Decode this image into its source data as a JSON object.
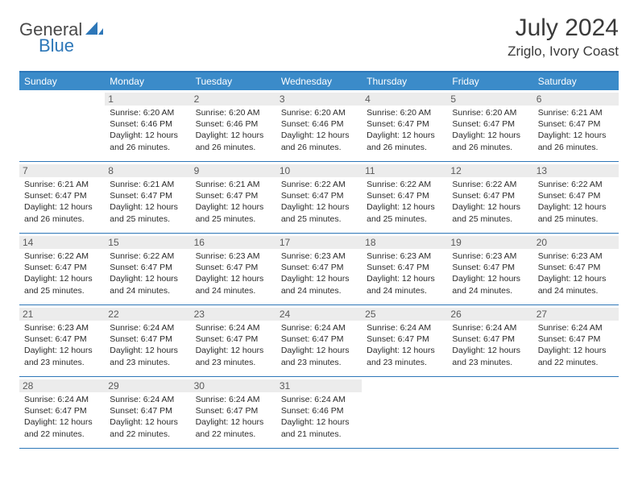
{
  "logo": {
    "word1": "General",
    "word2": "Blue"
  },
  "title": "July 2024",
  "location": "Zriglo, Ivory Coast",
  "colors": {
    "header_bg": "#3b8bc9",
    "header_text": "#ffffff",
    "border": "#2d77b8",
    "daynum_bg": "#ececec",
    "daynum_text": "#5a5a5a",
    "body_text": "#2b2b2b",
    "title_text": "#3a3a3a"
  },
  "day_names": [
    "Sunday",
    "Monday",
    "Tuesday",
    "Wednesday",
    "Thursday",
    "Friday",
    "Saturday"
  ],
  "weeks": [
    [
      {
        "n": "",
        "sr": "",
        "ss": "",
        "dl": ""
      },
      {
        "n": "1",
        "sr": "Sunrise: 6:20 AM",
        "ss": "Sunset: 6:46 PM",
        "dl": "Daylight: 12 hours and 26 minutes."
      },
      {
        "n": "2",
        "sr": "Sunrise: 6:20 AM",
        "ss": "Sunset: 6:46 PM",
        "dl": "Daylight: 12 hours and 26 minutes."
      },
      {
        "n": "3",
        "sr": "Sunrise: 6:20 AM",
        "ss": "Sunset: 6:46 PM",
        "dl": "Daylight: 12 hours and 26 minutes."
      },
      {
        "n": "4",
        "sr": "Sunrise: 6:20 AM",
        "ss": "Sunset: 6:47 PM",
        "dl": "Daylight: 12 hours and 26 minutes."
      },
      {
        "n": "5",
        "sr": "Sunrise: 6:20 AM",
        "ss": "Sunset: 6:47 PM",
        "dl": "Daylight: 12 hours and 26 minutes."
      },
      {
        "n": "6",
        "sr": "Sunrise: 6:21 AM",
        "ss": "Sunset: 6:47 PM",
        "dl": "Daylight: 12 hours and 26 minutes."
      }
    ],
    [
      {
        "n": "7",
        "sr": "Sunrise: 6:21 AM",
        "ss": "Sunset: 6:47 PM",
        "dl": "Daylight: 12 hours and 26 minutes."
      },
      {
        "n": "8",
        "sr": "Sunrise: 6:21 AM",
        "ss": "Sunset: 6:47 PM",
        "dl": "Daylight: 12 hours and 25 minutes."
      },
      {
        "n": "9",
        "sr": "Sunrise: 6:21 AM",
        "ss": "Sunset: 6:47 PM",
        "dl": "Daylight: 12 hours and 25 minutes."
      },
      {
        "n": "10",
        "sr": "Sunrise: 6:22 AM",
        "ss": "Sunset: 6:47 PM",
        "dl": "Daylight: 12 hours and 25 minutes."
      },
      {
        "n": "11",
        "sr": "Sunrise: 6:22 AM",
        "ss": "Sunset: 6:47 PM",
        "dl": "Daylight: 12 hours and 25 minutes."
      },
      {
        "n": "12",
        "sr": "Sunrise: 6:22 AM",
        "ss": "Sunset: 6:47 PM",
        "dl": "Daylight: 12 hours and 25 minutes."
      },
      {
        "n": "13",
        "sr": "Sunrise: 6:22 AM",
        "ss": "Sunset: 6:47 PM",
        "dl": "Daylight: 12 hours and 25 minutes."
      }
    ],
    [
      {
        "n": "14",
        "sr": "Sunrise: 6:22 AM",
        "ss": "Sunset: 6:47 PM",
        "dl": "Daylight: 12 hours and 25 minutes."
      },
      {
        "n": "15",
        "sr": "Sunrise: 6:22 AM",
        "ss": "Sunset: 6:47 PM",
        "dl": "Daylight: 12 hours and 24 minutes."
      },
      {
        "n": "16",
        "sr": "Sunrise: 6:23 AM",
        "ss": "Sunset: 6:47 PM",
        "dl": "Daylight: 12 hours and 24 minutes."
      },
      {
        "n": "17",
        "sr": "Sunrise: 6:23 AM",
        "ss": "Sunset: 6:47 PM",
        "dl": "Daylight: 12 hours and 24 minutes."
      },
      {
        "n": "18",
        "sr": "Sunrise: 6:23 AM",
        "ss": "Sunset: 6:47 PM",
        "dl": "Daylight: 12 hours and 24 minutes."
      },
      {
        "n": "19",
        "sr": "Sunrise: 6:23 AM",
        "ss": "Sunset: 6:47 PM",
        "dl": "Daylight: 12 hours and 24 minutes."
      },
      {
        "n": "20",
        "sr": "Sunrise: 6:23 AM",
        "ss": "Sunset: 6:47 PM",
        "dl": "Daylight: 12 hours and 24 minutes."
      }
    ],
    [
      {
        "n": "21",
        "sr": "Sunrise: 6:23 AM",
        "ss": "Sunset: 6:47 PM",
        "dl": "Daylight: 12 hours and 23 minutes."
      },
      {
        "n": "22",
        "sr": "Sunrise: 6:24 AM",
        "ss": "Sunset: 6:47 PM",
        "dl": "Daylight: 12 hours and 23 minutes."
      },
      {
        "n": "23",
        "sr": "Sunrise: 6:24 AM",
        "ss": "Sunset: 6:47 PM",
        "dl": "Daylight: 12 hours and 23 minutes."
      },
      {
        "n": "24",
        "sr": "Sunrise: 6:24 AM",
        "ss": "Sunset: 6:47 PM",
        "dl": "Daylight: 12 hours and 23 minutes."
      },
      {
        "n": "25",
        "sr": "Sunrise: 6:24 AM",
        "ss": "Sunset: 6:47 PM",
        "dl": "Daylight: 12 hours and 23 minutes."
      },
      {
        "n": "26",
        "sr": "Sunrise: 6:24 AM",
        "ss": "Sunset: 6:47 PM",
        "dl": "Daylight: 12 hours and 23 minutes."
      },
      {
        "n": "27",
        "sr": "Sunrise: 6:24 AM",
        "ss": "Sunset: 6:47 PM",
        "dl": "Daylight: 12 hours and 22 minutes."
      }
    ],
    [
      {
        "n": "28",
        "sr": "Sunrise: 6:24 AM",
        "ss": "Sunset: 6:47 PM",
        "dl": "Daylight: 12 hours and 22 minutes."
      },
      {
        "n": "29",
        "sr": "Sunrise: 6:24 AM",
        "ss": "Sunset: 6:47 PM",
        "dl": "Daylight: 12 hours and 22 minutes."
      },
      {
        "n": "30",
        "sr": "Sunrise: 6:24 AM",
        "ss": "Sunset: 6:47 PM",
        "dl": "Daylight: 12 hours and 22 minutes."
      },
      {
        "n": "31",
        "sr": "Sunrise: 6:24 AM",
        "ss": "Sunset: 6:46 PM",
        "dl": "Daylight: 12 hours and 21 minutes."
      },
      {
        "n": "",
        "sr": "",
        "ss": "",
        "dl": ""
      },
      {
        "n": "",
        "sr": "",
        "ss": "",
        "dl": ""
      },
      {
        "n": "",
        "sr": "",
        "ss": "",
        "dl": ""
      }
    ]
  ]
}
